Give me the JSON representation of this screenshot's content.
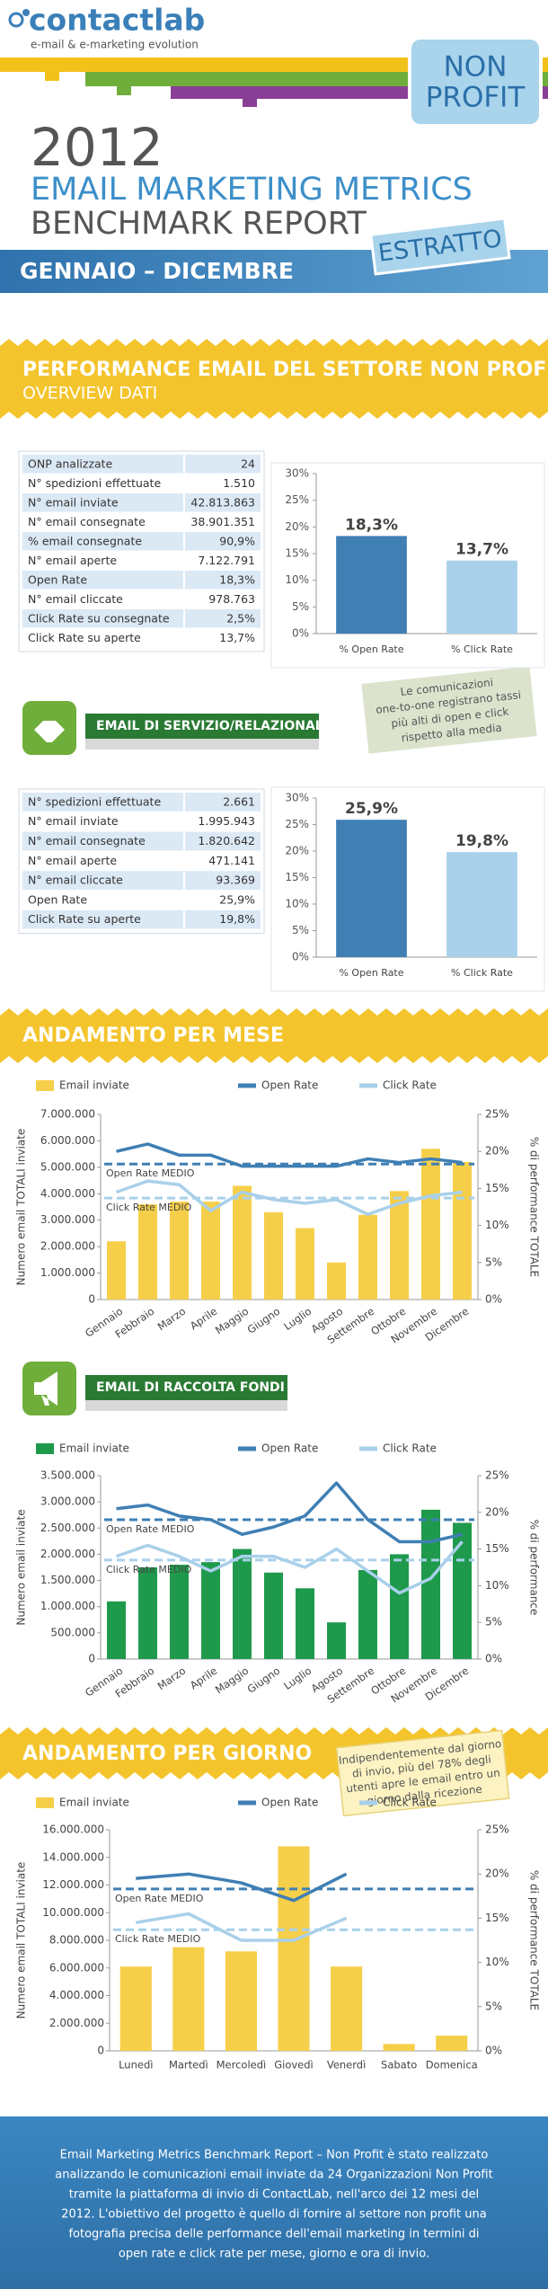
{
  "header": {
    "logo": "contactlab",
    "tagline": "e-mail & e-marketing evolution",
    "badge": [
      "NON",
      "PROFIT"
    ],
    "year": "2012",
    "title_1": "EMAIL MARKETING METRICS",
    "title_2": "BENCHMARK REPORT",
    "period": "GENNAIO – DICEMBRE",
    "tag": "ESTRATTO"
  },
  "overview": {
    "title": "PERFORMANCE EMAIL DEL SETTORE NON PROFIT",
    "subtitle": "OVERVIEW DATI",
    "table": {
      "rows": [
        [
          "ONP analizzate",
          "24"
        ],
        [
          "N° spedizioni effettuate",
          "1.510"
        ],
        [
          "N° email inviate",
          "42.813.863"
        ],
        [
          "N° email consegnate",
          "38.901.351"
        ],
        [
          "% email consegnate",
          "90,9%"
        ],
        [
          "N° email aperte",
          "7.122.791"
        ],
        [
          "Open Rate",
          "18,3%"
        ],
        [
          "N° email cliccate",
          "978.763"
        ],
        [
          "Click Rate su consegnate",
          "2,5%"
        ],
        [
          "Click Rate su aperte",
          "13,7%"
        ]
      ]
    }
  },
  "servizio": {
    "title": "EMAIL DI SERVIZIO/RELAZIONALI",
    "note": [
      "Le comunicazioni",
      "one-to-one registrano tassi",
      "più alti di open e click",
      "rispetto alla media"
    ],
    "table": {
      "rows": [
        [
          "N° spedizioni effettuate",
          "2.661"
        ],
        [
          "N° email inviate",
          "1.995.943"
        ],
        [
          "N° email consegnate",
          "1.820.642"
        ],
        [
          "N° email aperte",
          "471.141"
        ],
        [
          "N° email cliccate",
          "93.369"
        ],
        [
          "Open Rate",
          "25,9%"
        ],
        [
          "Click Rate su aperte",
          "19,8%"
        ]
      ]
    }
  },
  "mese": {
    "title": "ANDAMENTO PER MESE"
  },
  "raccolta": {
    "title": "EMAIL DI RACCOLTA FONDI"
  },
  "giorno": {
    "title": "ANDAMENTO PER GIORNO",
    "note": [
      "Indipendentemente dal giorno",
      "di invio, più del 78% degli",
      "utenti apre le email entro un",
      "giorno dalla ricezione"
    ]
  },
  "footer": {
    "lines": [
      "Email Marketing Metrics Benchmark Report – Non Profit è stato realizzato",
      "analizzando le comunicazioni email inviate da 24 Organizzazioni Non Profit",
      "tramite la piattaforma di invio di ContactLab, nell'arco dei 12 mesi del",
      "2012. L'obiettivo del progetto è quello di fornire al settore non profit una",
      "fotografia precisa delle performance dell'email marketing in termini di",
      "open rate e click rate per mese, giorno e ora di invio."
    ]
  },
  "chart_data": [
    {
      "type": "bar",
      "categories": [
        "% Open Rate",
        "% Click Rate"
      ],
      "values": [
        18.3,
        13.7
      ],
      "value_labels": [
        "18,3%",
        "13,7%"
      ],
      "colors": [
        "#3f7fb4",
        "#a9d0ea"
      ],
      "ylim": [
        0,
        30
      ],
      "yticks": [
        {
          "value": 0,
          "label": "0%"
        },
        {
          "value": 5,
          "label": "5%"
        },
        {
          "value": 10,
          "label": "10%"
        },
        {
          "value": 15,
          "label": "15%"
        },
        {
          "value": 20,
          "label": "20%"
        },
        {
          "value": 25,
          "label": "25%"
        },
        {
          "value": 30,
          "label": "30%"
        }
      ],
      "grid": false
    },
    {
      "type": "bar",
      "categories": [
        "% Open Rate",
        "% Click Rate"
      ],
      "values": [
        25.9,
        19.8
      ],
      "value_labels": [
        "25,9%",
        "19,8%"
      ],
      "colors": [
        "#3f7fb4",
        "#a9d0ea"
      ],
      "ylim": [
        0,
        30
      ],
      "yticks": [
        {
          "value": 0,
          "label": "0%"
        },
        {
          "value": 5,
          "label": "5%"
        },
        {
          "value": 10,
          "label": "10%"
        },
        {
          "value": 15,
          "label": "15%"
        },
        {
          "value": 20,
          "label": "20%"
        },
        {
          "value": 25,
          "label": "25%"
        },
        {
          "value": 30,
          "label": "30%"
        }
      ],
      "grid": false
    },
    {
      "type": "bar_line",
      "ylabel": "Numero email TOTALI inviate",
      "y2label": "% di performance TOTALE",
      "categories": [
        "Gennaio",
        "Febbraio",
        "Marzo",
        "Aprile",
        "Maggio",
        "Giugno",
        "Luglio",
        "Agosto",
        "Settembre",
        "Ottobre",
        "Novembre",
        "Dicembre"
      ],
      "series": [
        {
          "name": "Email inviate",
          "color": "#f6cf4a",
          "values": [
            2200000,
            3600000,
            3700000,
            3700000,
            4300000,
            3300000,
            2700000,
            1400000,
            3200000,
            4100000,
            5700000,
            5200000
          ]
        },
        {
          "name": "Open Rate",
          "color": "#3f7fb4",
          "axis": "y2",
          "values": [
            20,
            21,
            19.5,
            19.5,
            18,
            18,
            18,
            18,
            19,
            18.5,
            19,
            18.5
          ]
        },
        {
          "name": "Click Rate",
          "color": "#a9d0ea",
          "axis": "y2",
          "values": [
            14.5,
            16,
            15.5,
            12,
            14.5,
            13.5,
            13,
            13.5,
            11.5,
            13,
            14,
            14.5
          ]
        }
      ],
      "reference_lines": [
        {
          "label": "Open Rate MEDIO",
          "value": 18.3,
          "color": "#3f7fb4",
          "axis": "y2"
        },
        {
          "label": "Click Rate MEDIO",
          "value": 13.7,
          "color": "#a9d0ea",
          "axis": "y2"
        }
      ],
      "ylim": [
        0,
        7000000
      ],
      "yticks": [
        0,
        {
          "value": 1000000,
          "label": "1.000.000"
        },
        {
          "value": 2000000,
          "label": "2.000.000"
        },
        {
          "value": 3000000,
          "label": "3.000.000"
        },
        {
          "value": 4000000,
          "label": "4.000.000"
        },
        {
          "value": 5000000,
          "label": "5.000.000"
        },
        {
          "value": 6000000,
          "label": "6.000.000"
        },
        {
          "value": 7000000,
          "label": "7.000.000"
        }
      ],
      "y2lim": [
        0,
        25
      ],
      "y2ticks": [
        {
          "value": 0,
          "label": "0%"
        },
        {
          "value": 5,
          "label": "5%"
        },
        {
          "value": 10,
          "label": "10%"
        },
        {
          "value": 15,
          "label": "15%"
        },
        {
          "value": 20,
          "label": "20%"
        },
        {
          "value": 25,
          "label": "25%"
        }
      ],
      "rotate_labels": true
    },
    {
      "type": "bar_line",
      "ylabel": "Numero email inviate",
      "y2label": "% di performance",
      "categories": [
        "Gennaio",
        "Febbraio",
        "Marzo",
        "Aprile",
        "Maggio",
        "Giugno",
        "Luglio",
        "Agosto",
        "Settembre",
        "Ottobre",
        "Novembre",
        "Dicembre"
      ],
      "series": [
        {
          "name": "Email inviate",
          "color": "#1f9a4c",
          "values": [
            1100000,
            1750000,
            1800000,
            1850000,
            2100000,
            1650000,
            1350000,
            700000,
            1700000,
            2000000,
            2850000,
            2600000
          ]
        },
        {
          "name": "Open Rate",
          "color": "#3f7fb4",
          "axis": "y2",
          "values": [
            20.5,
            21,
            19.5,
            19,
            17,
            18,
            19.5,
            24,
            19,
            16,
            16,
            17
          ]
        },
        {
          "name": "Click Rate",
          "color": "#a9d0ea",
          "axis": "y2",
          "values": [
            14,
            15.5,
            14,
            12,
            14,
            14,
            12.5,
            15,
            12,
            9,
            11,
            16
          ]
        }
      ],
      "reference_lines": [
        {
          "label": "Open Rate MEDIO",
          "value": 19,
          "color": "#3f7fb4",
          "axis": "y2"
        },
        {
          "label": "Click Rate MEDIO",
          "value": 13.5,
          "color": "#a9d0ea",
          "axis": "y2"
        }
      ],
      "ylim": [
        0,
        3500000
      ],
      "yticks": [
        0,
        {
          "value": 500000,
          "label": "500.000"
        },
        {
          "value": 1000000,
          "label": "1.000.000"
        },
        {
          "value": 1500000,
          "label": "1.500.000"
        },
        {
          "value": 2000000,
          "label": "2.000.000"
        },
        {
          "value": 2500000,
          "label": "2.500.000"
        },
        {
          "value": 3000000,
          "label": "3.000.000"
        },
        {
          "value": 3500000,
          "label": "3.500.000"
        }
      ],
      "y2lim": [
        0,
        25
      ],
      "y2ticks": [
        {
          "value": 0,
          "label": "0%"
        },
        {
          "value": 5,
          "label": "5%"
        },
        {
          "value": 10,
          "label": "10%"
        },
        {
          "value": 15,
          "label": "15%"
        },
        {
          "value": 20,
          "label": "20%"
        },
        {
          "value": 25,
          "label": "25%"
        }
      ],
      "rotate_labels": true
    },
    {
      "type": "bar_line",
      "ylabel": "Numero email TOTALI inviate",
      "y2label": "% di performance TOTALE",
      "categories": [
        "Lunedì",
        "Martedì",
        "Mercoledì",
        "Giovedì",
        "Venerdì",
        "Sabato",
        "Domenica"
      ],
      "series": [
        {
          "name": "Email inviate",
          "color": "#f6cf4a",
          "values": [
            6100000,
            7500000,
            7200000,
            14800000,
            6100000,
            500000,
            1100000
          ]
        },
        {
          "name": "Open Rate",
          "color": "#3f7fb4",
          "axis": "y2",
          "values": [
            19.5,
            20,
            19,
            17,
            20,
            null,
            null
          ]
        },
        {
          "name": "Click Rate",
          "color": "#a9d0ea",
          "axis": "y2",
          "values": [
            14.5,
            15.5,
            12.5,
            12.5,
            15,
            null,
            null
          ]
        }
      ],
      "reference_lines": [
        {
          "label": "Open Rate MEDIO",
          "value": 18.3,
          "color": "#3f7fb4",
          "axis": "y2"
        },
        {
          "label": "Click Rate MEDIO",
          "value": 13.7,
          "color": "#a9d0ea",
          "axis": "y2"
        }
      ],
      "ylim": [
        0,
        16000000
      ],
      "yticks": [
        0,
        {
          "value": 2000000,
          "label": "2.000.000"
        },
        {
          "value": 4000000,
          "label": "4.000.000"
        },
        {
          "value": 6000000,
          "label": "6.000.000"
        },
        {
          "value": 8000000,
          "label": "8.000.000"
        },
        {
          "value": 10000000,
          "label": "10.000.000"
        },
        {
          "value": 12000000,
          "label": "12.000.000"
        },
        {
          "value": 14000000,
          "label": "14.000.000"
        },
        {
          "value": 16000000,
          "label": "16.000.000"
        }
      ],
      "y2lim": [
        0,
        25
      ],
      "y2ticks": [
        {
          "value": 0,
          "label": "0%"
        },
        {
          "value": 5,
          "label": "5%"
        },
        {
          "value": 10,
          "label": "10%"
        },
        {
          "value": 15,
          "label": "15%"
        },
        {
          "value": 20,
          "label": "20%"
        },
        {
          "value": 25,
          "label": "25%"
        }
      ],
      "rotate_labels": false
    }
  ]
}
